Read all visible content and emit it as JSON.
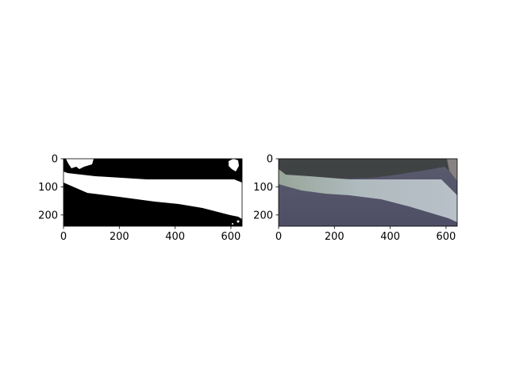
{
  "chart_data": [
    {
      "type": "image",
      "name": "binary-mask",
      "xlim": [
        0,
        640
      ],
      "ylim": [
        240,
        0
      ],
      "xticks": [
        0,
        200,
        400,
        600
      ],
      "yticks": [
        0,
        100,
        200
      ],
      "xtick_labels": [
        "0",
        "200",
        "400",
        "600"
      ],
      "ytick_labels": [
        "0",
        "100",
        "200"
      ],
      "colors": {
        "background": "#000000",
        "foreground": "#ffffff"
      }
    },
    {
      "type": "image",
      "name": "camera-photo",
      "xlim": [
        0,
        640
      ],
      "ylim": [
        240,
        0
      ],
      "xticks": [
        0,
        200,
        400,
        600
      ],
      "yticks": [
        0,
        100,
        200
      ],
      "xtick_labels": [
        "0",
        "200",
        "400",
        "600"
      ],
      "ytick_labels": [
        "0",
        "100",
        "200"
      ],
      "colors": {
        "ground": "#4f4f66",
        "stripe": "#b8c4cc",
        "upper": "#3a3d3c",
        "edge": "#8c8582"
      }
    }
  ]
}
